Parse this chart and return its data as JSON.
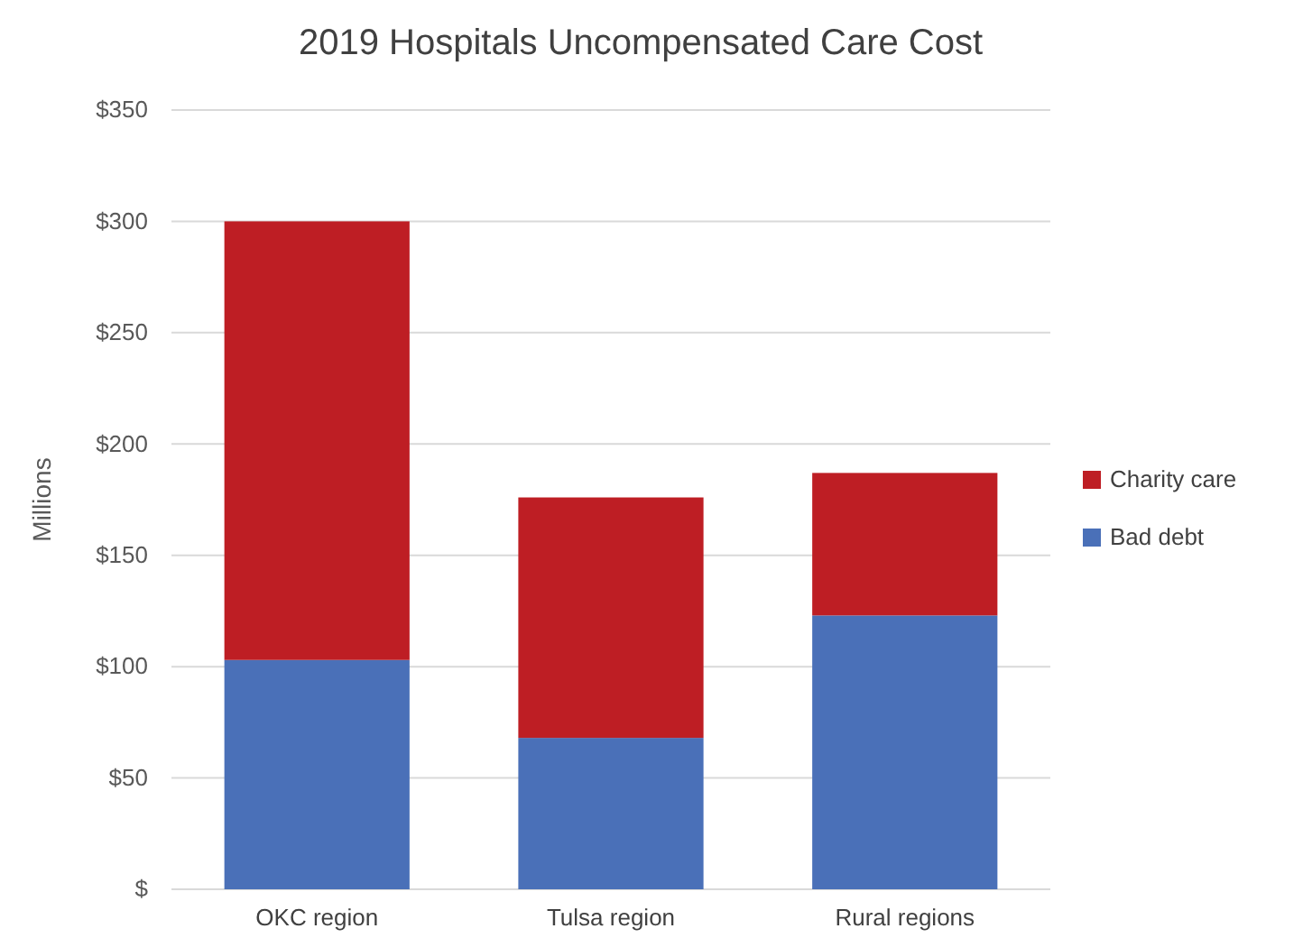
{
  "chart_data": {
    "type": "bar",
    "title": "2019 Hospitals Uncompensated Care Cost",
    "ylabel": "Millions",
    "categories": [
      "OKC region",
      "Tulsa region",
      "Rural regions"
    ],
    "stacked": true,
    "series": [
      {
        "name": "Bad debt",
        "color": "#4a70b8",
        "values": [
          103,
          68,
          123
        ]
      },
      {
        "name": "Charity care",
        "color": "#be1e24",
        "values": [
          197,
          108,
          64
        ]
      }
    ],
    "ylim": [
      0,
      350
    ],
    "yticks": [
      {
        "value": 0,
        "label": "$"
      },
      {
        "value": 50,
        "label": "$50"
      },
      {
        "value": 100,
        "label": "$100"
      },
      {
        "value": 150,
        "label": "$150"
      },
      {
        "value": 200,
        "label": "$200"
      },
      {
        "value": 250,
        "label": "$250"
      },
      {
        "value": 300,
        "label": "$300"
      },
      {
        "value": 350,
        "label": "$350"
      }
    ],
    "grid": "y",
    "legend": "right"
  }
}
